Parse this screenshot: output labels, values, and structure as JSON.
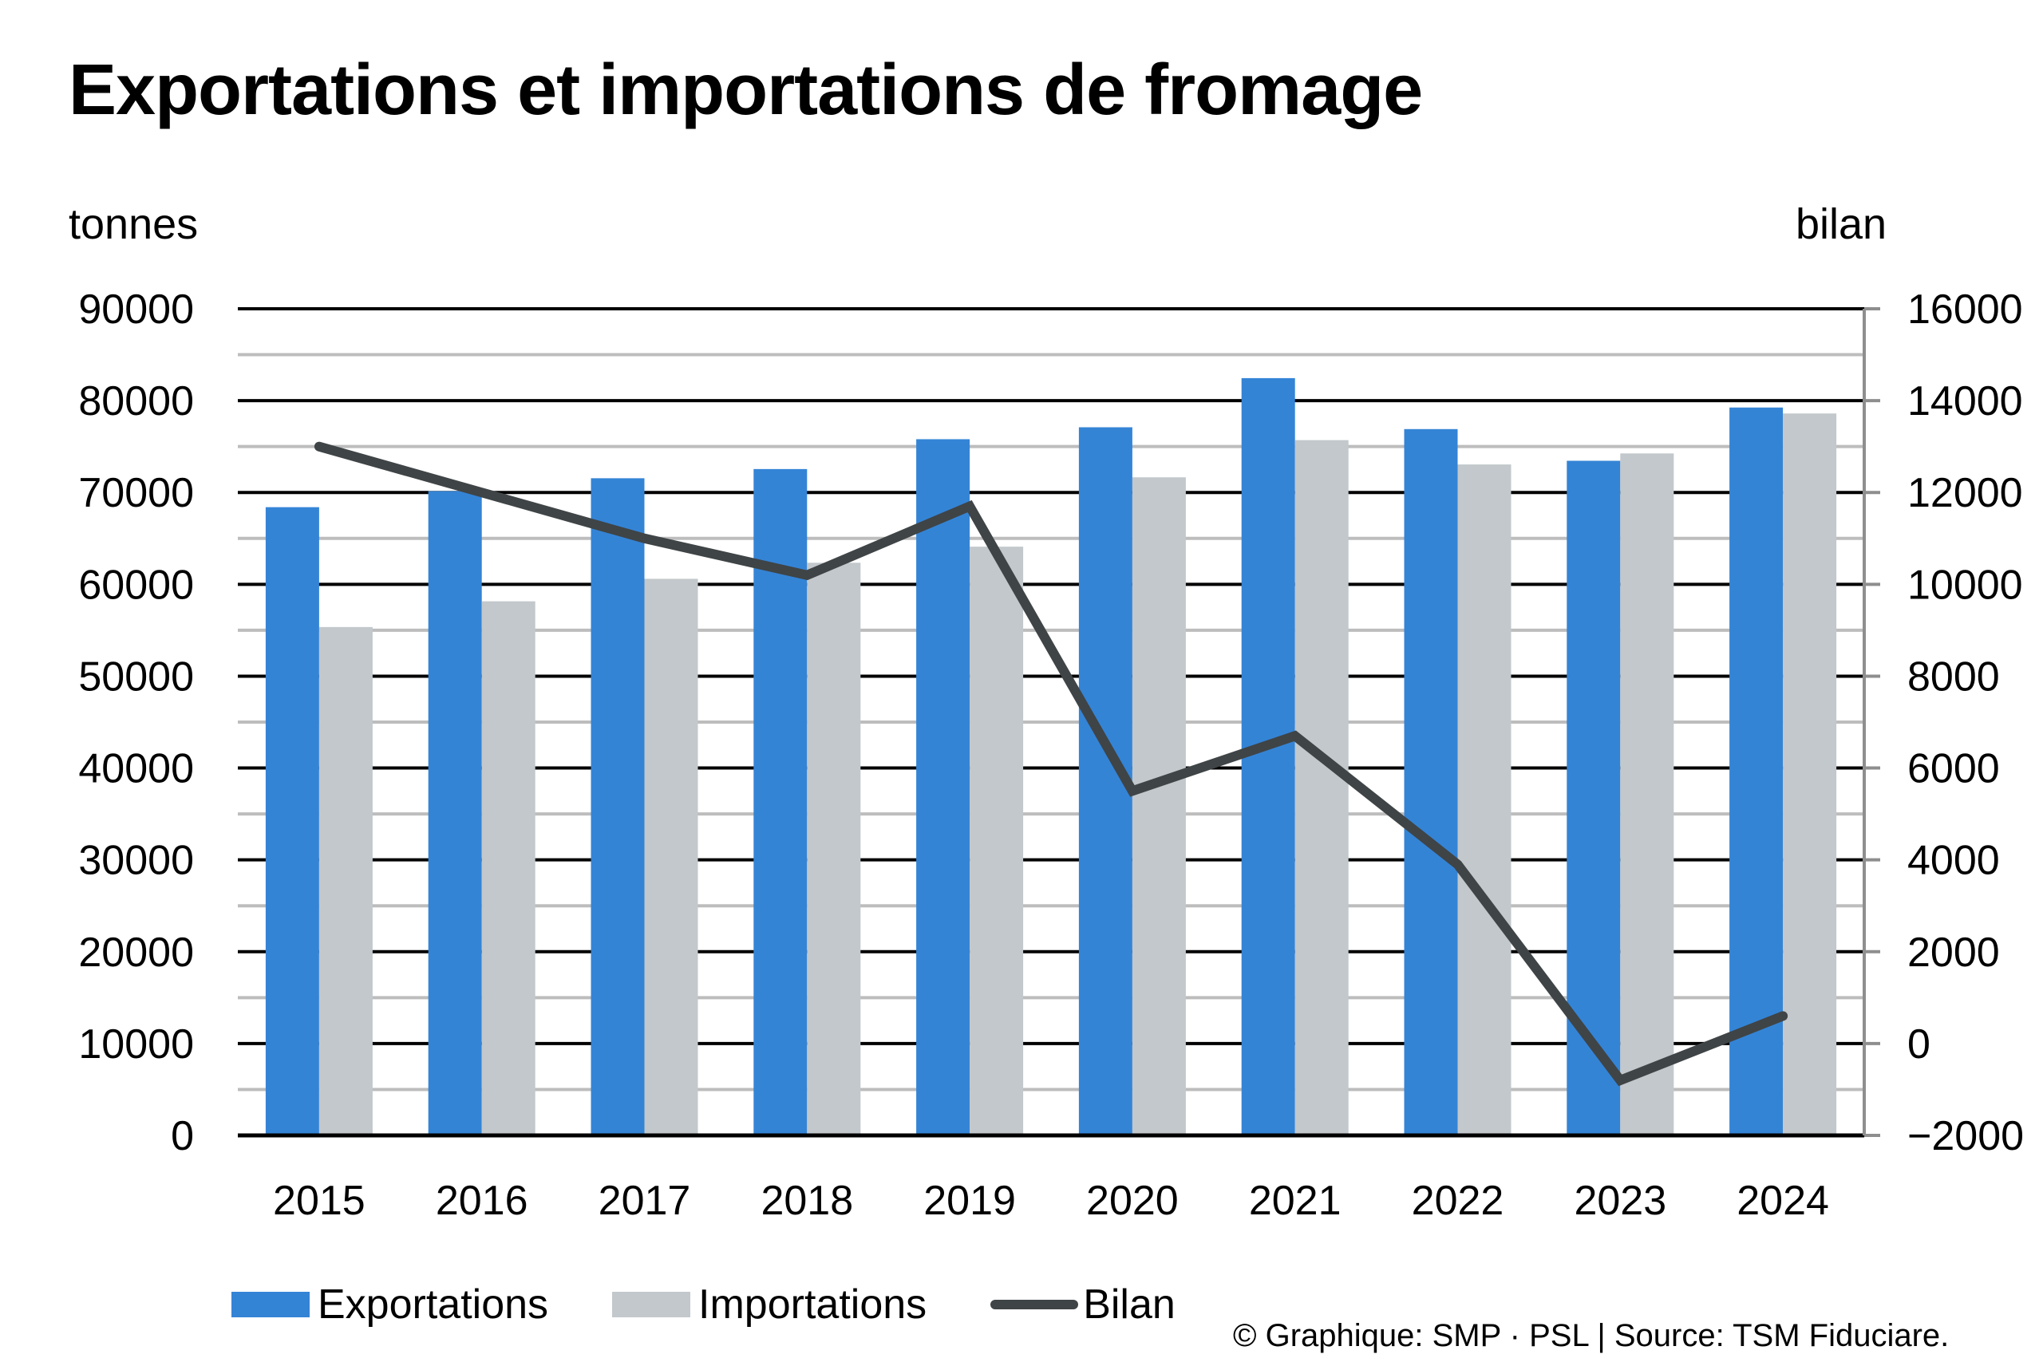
{
  "title": "Exportations et importations de fromage",
  "colors": {
    "exports": "#3484d6",
    "imports": "#c2c8cb",
    "balance": "#3f4446",
    "major_grid": "#000000",
    "minor_grid": "#bdbdbd",
    "axis": "#8e8e8e"
  },
  "legend": {
    "exports": "Exportations",
    "imports": "Importations",
    "balance": "Bilan"
  },
  "credit": "© Graphique: SMP · PSL | Source: TSM Fiduciare.",
  "chart_data": {
    "type": "bar",
    "title": "Exportations et importations de fromage",
    "xlabel": "",
    "ylabel": "tonnes",
    "y2label": "bilan",
    "categories": [
      "2015",
      "2016",
      "2017",
      "2018",
      "2019",
      "2020",
      "2021",
      "2022",
      "2023",
      "2024"
    ],
    "series": [
      {
        "name": "Exportations",
        "type": "bar",
        "axis": "left",
        "values": [
          68400,
          70150,
          71550,
          72550,
          75800,
          77100,
          82450,
          76900,
          73450,
          79250
        ]
      },
      {
        "name": "Importations",
        "type": "bar",
        "axis": "left",
        "values": [
          55350,
          58150,
          60600,
          62350,
          64100,
          71650,
          75700,
          73050,
          74250,
          78600
        ]
      },
      {
        "name": "Bilan",
        "type": "line",
        "axis": "right",
        "values": [
          13000,
          12000,
          11000,
          10200,
          11700,
          5500,
          6700,
          3900,
          -800,
          600
        ]
      }
    ],
    "ylim": [
      0,
      90000
    ],
    "y2lim": [
      -2000,
      16000
    ],
    "yticks": [
      0,
      10000,
      20000,
      30000,
      40000,
      50000,
      60000,
      70000,
      80000,
      90000
    ],
    "y2ticks": [
      -2000,
      0,
      2000,
      4000,
      6000,
      8000,
      10000,
      12000,
      14000,
      16000
    ],
    "yticklabels": [
      "0",
      "10000",
      "20000",
      "30000",
      "40000",
      "50000",
      "60000",
      "70000",
      "80000",
      "90000"
    ],
    "y2ticklabels": [
      "−2000",
      "0",
      "2000",
      "4000",
      "6000",
      "8000",
      "10000",
      "12000",
      "14000",
      "16000"
    ],
    "grid": true,
    "minor_grid_step": 5000,
    "legend_position": "bottom-left"
  }
}
